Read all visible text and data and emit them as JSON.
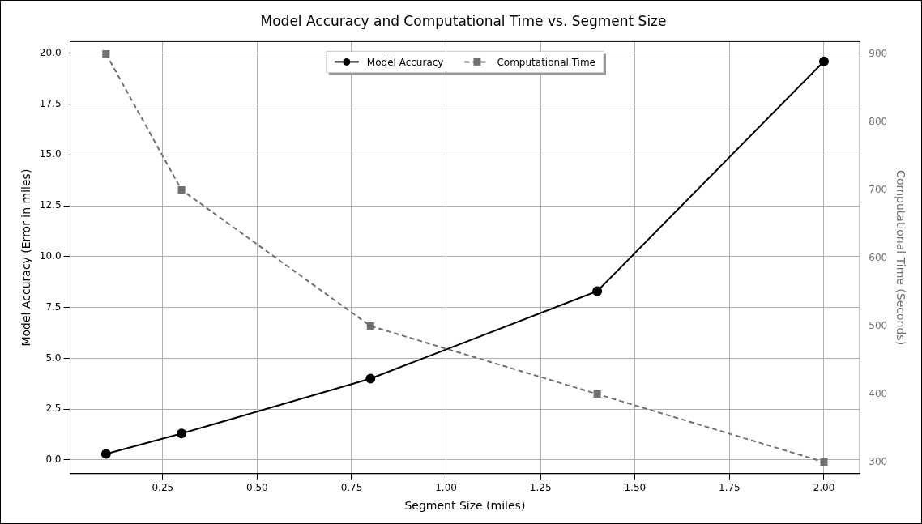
{
  "chart_data": {
    "type": "line",
    "title": "Model Accuracy and Computational Time vs. Segment Size",
    "xlabel": "Segment Size (miles)",
    "ylabel": "Model Accuracy (Error in miles)",
    "y2label": "Computational Time (Seconds)",
    "x": [
      0.1,
      0.3,
      0.8,
      1.4,
      2.0
    ],
    "series": [
      {
        "name": "Model Accuracy",
        "color": "#000000",
        "values": [
          0.3,
          1.3,
          4.0,
          8.3,
          19.6
        ],
        "marker": "circle",
        "line_style": "solid"
      },
      {
        "name": "Computational Time",
        "color": "#707070",
        "values": [
          900,
          700,
          500,
          400,
          300
        ],
        "axis": "y2",
        "marker": "square",
        "line_style": "dashed"
      }
    ],
    "xlim": [
      0.005,
      2.095
    ],
    "xticks": [
      {
        "value": 0.25,
        "label": "0.25"
      },
      {
        "value": 0.5,
        "label": "0.50"
      },
      {
        "value": 0.75,
        "label": "0.75"
      },
      {
        "value": 1.0,
        "label": "1.00"
      },
      {
        "value": 1.25,
        "label": "1.25"
      },
      {
        "value": 1.5,
        "label": "1.50"
      },
      {
        "value": 1.75,
        "label": "1.75"
      },
      {
        "value": 2.0,
        "label": "2.00"
      }
    ],
    "ylim": [
      -0.67,
      20.57
    ],
    "yticks": [
      {
        "value": 0,
        "label": "0.0"
      },
      {
        "value": 2.5,
        "label": "2.5"
      },
      {
        "value": 5,
        "label": "5.0"
      },
      {
        "value": 7.5,
        "label": "7.5"
      },
      {
        "value": 10,
        "label": "10.0"
      },
      {
        "value": 12.5,
        "label": "12.5"
      },
      {
        "value": 15,
        "label": "15.0"
      },
      {
        "value": 17.5,
        "label": "17.5"
      },
      {
        "value": 20,
        "label": "20.0"
      }
    ],
    "y2lim": [
      283,
      918
    ],
    "y2ticks": [
      300,
      400,
      500,
      600,
      700,
      800,
      900
    ],
    "grid": true,
    "legend": "top"
  }
}
